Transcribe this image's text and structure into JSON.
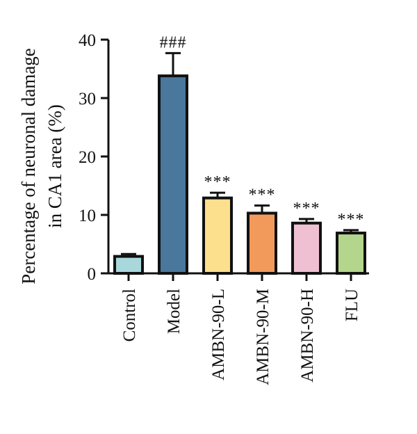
{
  "chart_data": {
    "type": "bar",
    "ylabel_lines": [
      "Percentage of neuronal damage",
      "in CA1 area (%)"
    ],
    "categories": [
      "Control",
      "Model",
      "AMBN-90-L",
      "AMBN-90-M",
      "AMBN-90-H",
      "FLU"
    ],
    "values": [
      2.9,
      33.8,
      12.9,
      10.3,
      8.6,
      6.9
    ],
    "errors": [
      0.4,
      3.9,
      0.9,
      1.3,
      0.7,
      0.5
    ],
    "significance": [
      "",
      "###",
      "***",
      "***",
      "***",
      "***"
    ],
    "colors": [
      "#a8d8dc",
      "#4a779c",
      "#fce08e",
      "#f29a5c",
      "#eec0d2",
      "#b3d68c"
    ],
    "ylim": [
      0,
      40
    ],
    "yticks": [
      0,
      10,
      20,
      30,
      40
    ]
  }
}
